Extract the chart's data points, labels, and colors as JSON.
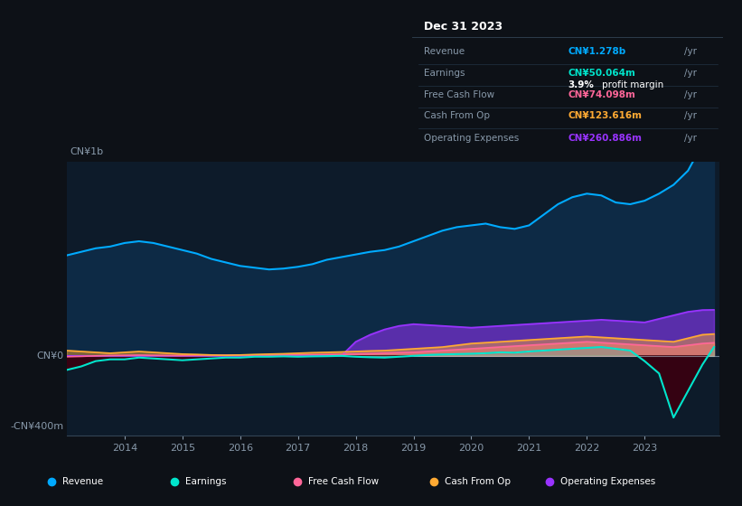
{
  "bg_color": "#0d1117",
  "plot_bg_color": "#0d1b2a",
  "grid_color": "#1e3a5f",
  "ylim": [
    -450,
    1100
  ],
  "xlim": [
    2013.0,
    2024.3
  ],
  "x_ticks": [
    2014,
    2015,
    2016,
    2017,
    2018,
    2019,
    2020,
    2021,
    2022,
    2023
  ],
  "revenue_color": "#00aaff",
  "revenue_fill": "#0d2a45",
  "earnings_color": "#00e5cc",
  "fcf_color": "#ff6699",
  "cashop_color": "#ffaa33",
  "opex_color": "#9933ff",
  "info_box": {
    "date": "Dec 31 2023",
    "revenue_label": "Revenue",
    "revenue_value": "CN¥1.278b",
    "revenue_color": "#00aaff",
    "earnings_label": "Earnings",
    "earnings_value": "CN¥50.064m",
    "earnings_color": "#00e5cc",
    "margin_pct": "3.9%",
    "margin_label": " profit margin",
    "fcf_label": "Free Cash Flow",
    "fcf_value": "CN¥74.098m",
    "fcf_color": "#ff6699",
    "cashop_label": "Cash From Op",
    "cashop_value": "CN¥123.616m",
    "cashop_color": "#ffaa33",
    "opex_label": "Operating Expenses",
    "opex_value": "CN¥260.886m",
    "opex_color": "#9933ff"
  },
  "legend": [
    {
      "label": "Revenue",
      "color": "#00aaff"
    },
    {
      "label": "Earnings",
      "color": "#00e5cc"
    },
    {
      "label": "Free Cash Flow",
      "color": "#ff6699"
    },
    {
      "label": "Cash From Op",
      "color": "#ffaa33"
    },
    {
      "label": "Operating Expenses",
      "color": "#9933ff"
    }
  ],
  "years": [
    2013.0,
    2013.25,
    2013.5,
    2013.75,
    2014.0,
    2014.25,
    2014.5,
    2014.75,
    2015.0,
    2015.25,
    2015.5,
    2015.75,
    2016.0,
    2016.25,
    2016.5,
    2016.75,
    2017.0,
    2017.25,
    2017.5,
    2017.75,
    2018.0,
    2018.25,
    2018.5,
    2018.75,
    2019.0,
    2019.25,
    2019.5,
    2019.75,
    2020.0,
    2020.25,
    2020.5,
    2020.75,
    2021.0,
    2021.25,
    2021.5,
    2021.75,
    2022.0,
    2022.25,
    2022.5,
    2022.75,
    2023.0,
    2023.25,
    2023.5,
    2023.75,
    2024.0,
    2024.2
  ],
  "revenue": [
    570,
    590,
    610,
    620,
    640,
    650,
    640,
    620,
    600,
    580,
    550,
    530,
    510,
    500,
    490,
    495,
    505,
    520,
    545,
    560,
    575,
    590,
    600,
    620,
    650,
    680,
    710,
    730,
    740,
    750,
    730,
    720,
    740,
    800,
    860,
    900,
    920,
    910,
    870,
    860,
    880,
    920,
    970,
    1050,
    1200,
    1278
  ],
  "earnings": [
    -80,
    -60,
    -30,
    -20,
    -20,
    -10,
    -15,
    -20,
    -25,
    -20,
    -15,
    -10,
    -10,
    -5,
    -5,
    -3,
    -5,
    -3,
    -2,
    0,
    -5,
    -8,
    -10,
    -5,
    0,
    5,
    8,
    10,
    12,
    15,
    20,
    18,
    25,
    30,
    35,
    40,
    45,
    50,
    40,
    30,
    -30,
    -100,
    -350,
    -200,
    -50,
    50
  ],
  "fcf": [
    -5,
    -3,
    0,
    2,
    3,
    4,
    3,
    2,
    2,
    3,
    3,
    4,
    5,
    4,
    4,
    5,
    6,
    7,
    8,
    9,
    10,
    12,
    15,
    18,
    20,
    25,
    30,
    35,
    40,
    45,
    50,
    55,
    60,
    65,
    70,
    75,
    80,
    75,
    70,
    65,
    60,
    55,
    50,
    60,
    70,
    74
  ],
  "cashop": [
    30,
    25,
    20,
    15,
    20,
    25,
    20,
    15,
    10,
    8,
    5,
    3,
    5,
    8,
    10,
    12,
    15,
    18,
    20,
    22,
    25,
    28,
    30,
    35,
    40,
    45,
    50,
    60,
    70,
    75,
    80,
    85,
    90,
    95,
    100,
    105,
    110,
    105,
    100,
    95,
    90,
    85,
    80,
    100,
    120,
    124
  ],
  "opex": [
    0,
    0,
    0,
    0,
    0,
    0,
    0,
    0,
    0,
    0,
    0,
    0,
    0,
    0,
    0,
    0,
    0,
    0,
    0,
    0,
    80,
    120,
    150,
    170,
    180,
    175,
    170,
    165,
    160,
    165,
    170,
    175,
    180,
    185,
    190,
    195,
    200,
    205,
    200,
    195,
    190,
    210,
    230,
    250,
    260,
    261
  ]
}
